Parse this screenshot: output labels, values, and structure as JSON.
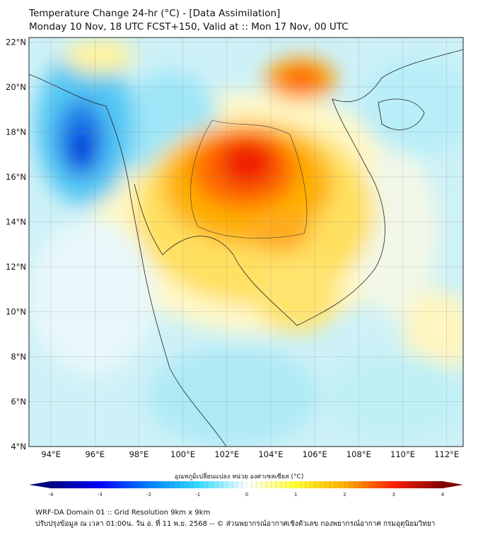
{
  "header": {
    "title": "Temperature Change 24-hr (°C) - [Data Assimilation]",
    "subtitle": "Monday 10 Nov, 18 UTC FCST+150, Valid at :: Mon 17 Nov, 00 UTC"
  },
  "map": {
    "lat_labels": [
      "22°N",
      "20°N",
      "18°N",
      "16°N",
      "14°N",
      "12°N",
      "10°N",
      "8°N",
      "6°N",
      "4°N"
    ],
    "lon_labels": [
      "94°E",
      "96°E",
      "98°E",
      "100°E",
      "102°E",
      "104°E",
      "106°E",
      "108°E",
      "110°E",
      "112°E"
    ],
    "extent": {
      "lon": [
        93,
        112.75
      ],
      "lat": [
        4,
        22.2
      ]
    }
  },
  "colorbar": {
    "title": "อุณหภูมิเปลี่ยนแปลง หน่วย องศาเซลเซียส (°C)",
    "ticks": [
      "-4",
      "-3",
      "-2",
      "-1",
      "0",
      "1",
      "2",
      "3",
      "4"
    ],
    "range": [
      -4,
      4
    ],
    "colors": [
      "#00007f",
      "#0000ff",
      "#0080ff",
      "#33ddff",
      "#ffffff",
      "#ffff33",
      "#ffb000",
      "#ff2000",
      "#7f0000"
    ]
  },
  "footer": {
    "line1": "WRF-DA Domain 01 :: Grid Resolution 9km x 9km",
    "line2": "ปรับปรุงข้อมูล ณ เวลา 01:00น. วัน อ. ที่ 11 พ.ย. 2568 -- © ส่วนพยากรณ์อากาศเชิงตัวเลข กองพยากรณ์อากาศ กรมอุตุนิยมวิทยา"
  }
}
